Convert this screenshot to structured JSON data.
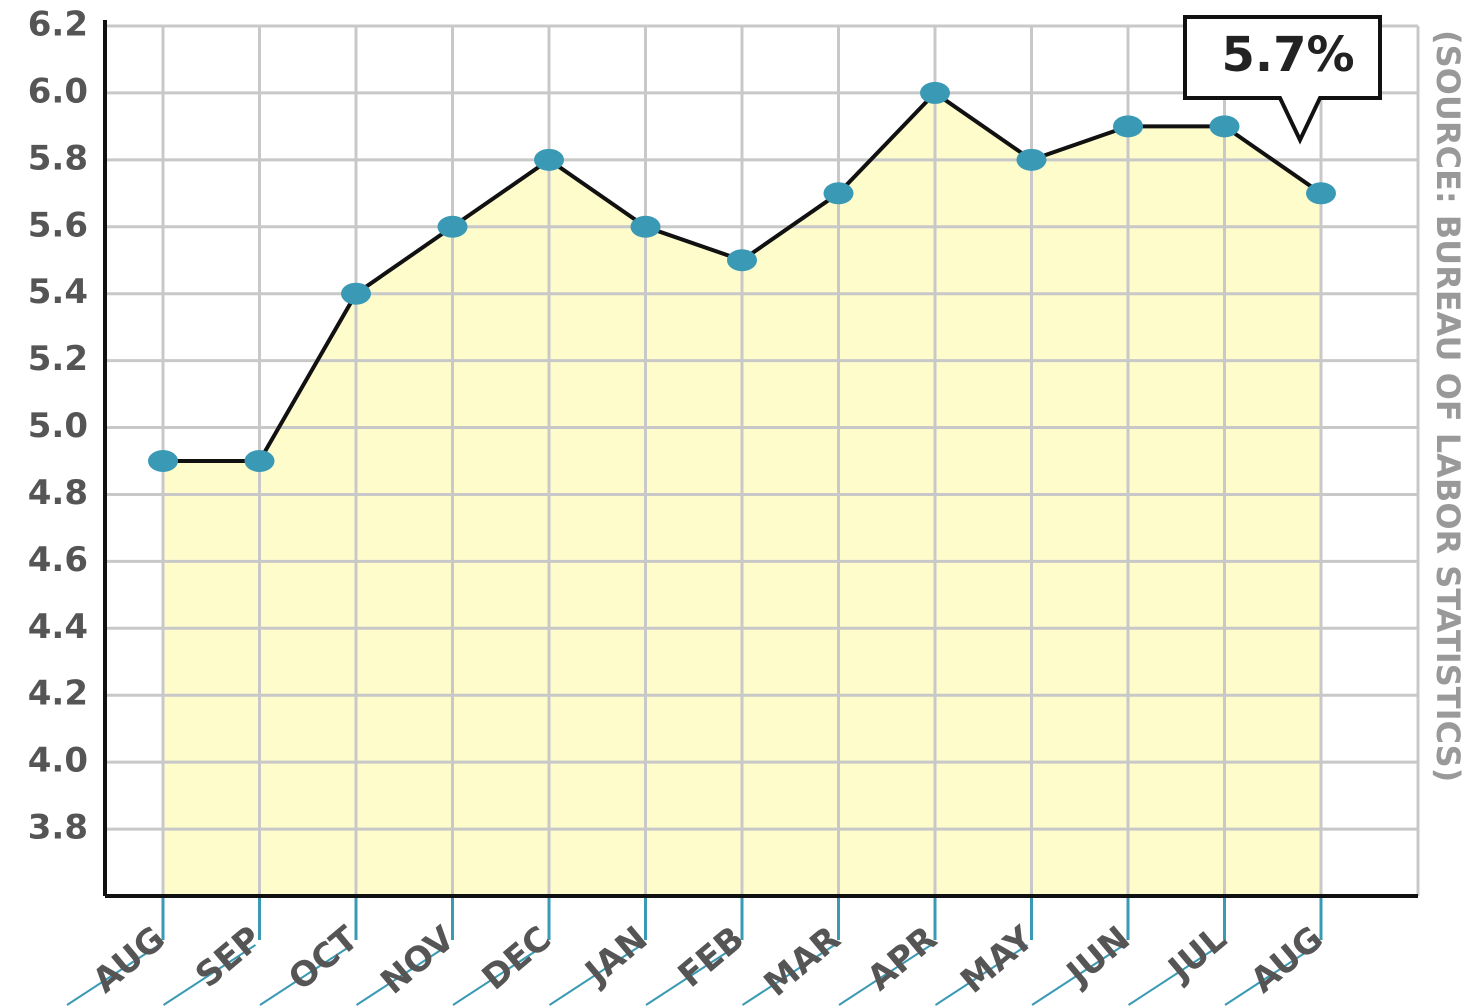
{
  "chart_data": {
    "type": "area",
    "categories": [
      "AUG",
      "SEP",
      "OCT",
      "NOV",
      "DEC",
      "JAN",
      "FEB",
      "MAR",
      "APR",
      "MAY",
      "JUN",
      "JUL",
      "AUG"
    ],
    "values": [
      4.9,
      4.9,
      5.4,
      5.6,
      5.8,
      5.6,
      5.5,
      5.7,
      6.0,
      5.8,
      5.9,
      5.9,
      5.7
    ],
    "ylim": [
      3.6,
      6.2
    ],
    "yticks": [
      3.8,
      {
        "value": 4,
        "label": "4.0"
      },
      4.2,
      4.4,
      4.6,
      4.8,
      {
        "value": 5,
        "label": "5.0"
      },
      5.2,
      5.4,
      5.6,
      5.8,
      {
        "value": 6,
        "label": "6.0"
      },
      6.2
    ],
    "grid": true,
    "color": "#3a9ab5",
    "fill": "#fffccc",
    "annotation": "5.7%",
    "source": "(SOURCE: BUREAU OF LABOR STATISTICS)"
  }
}
